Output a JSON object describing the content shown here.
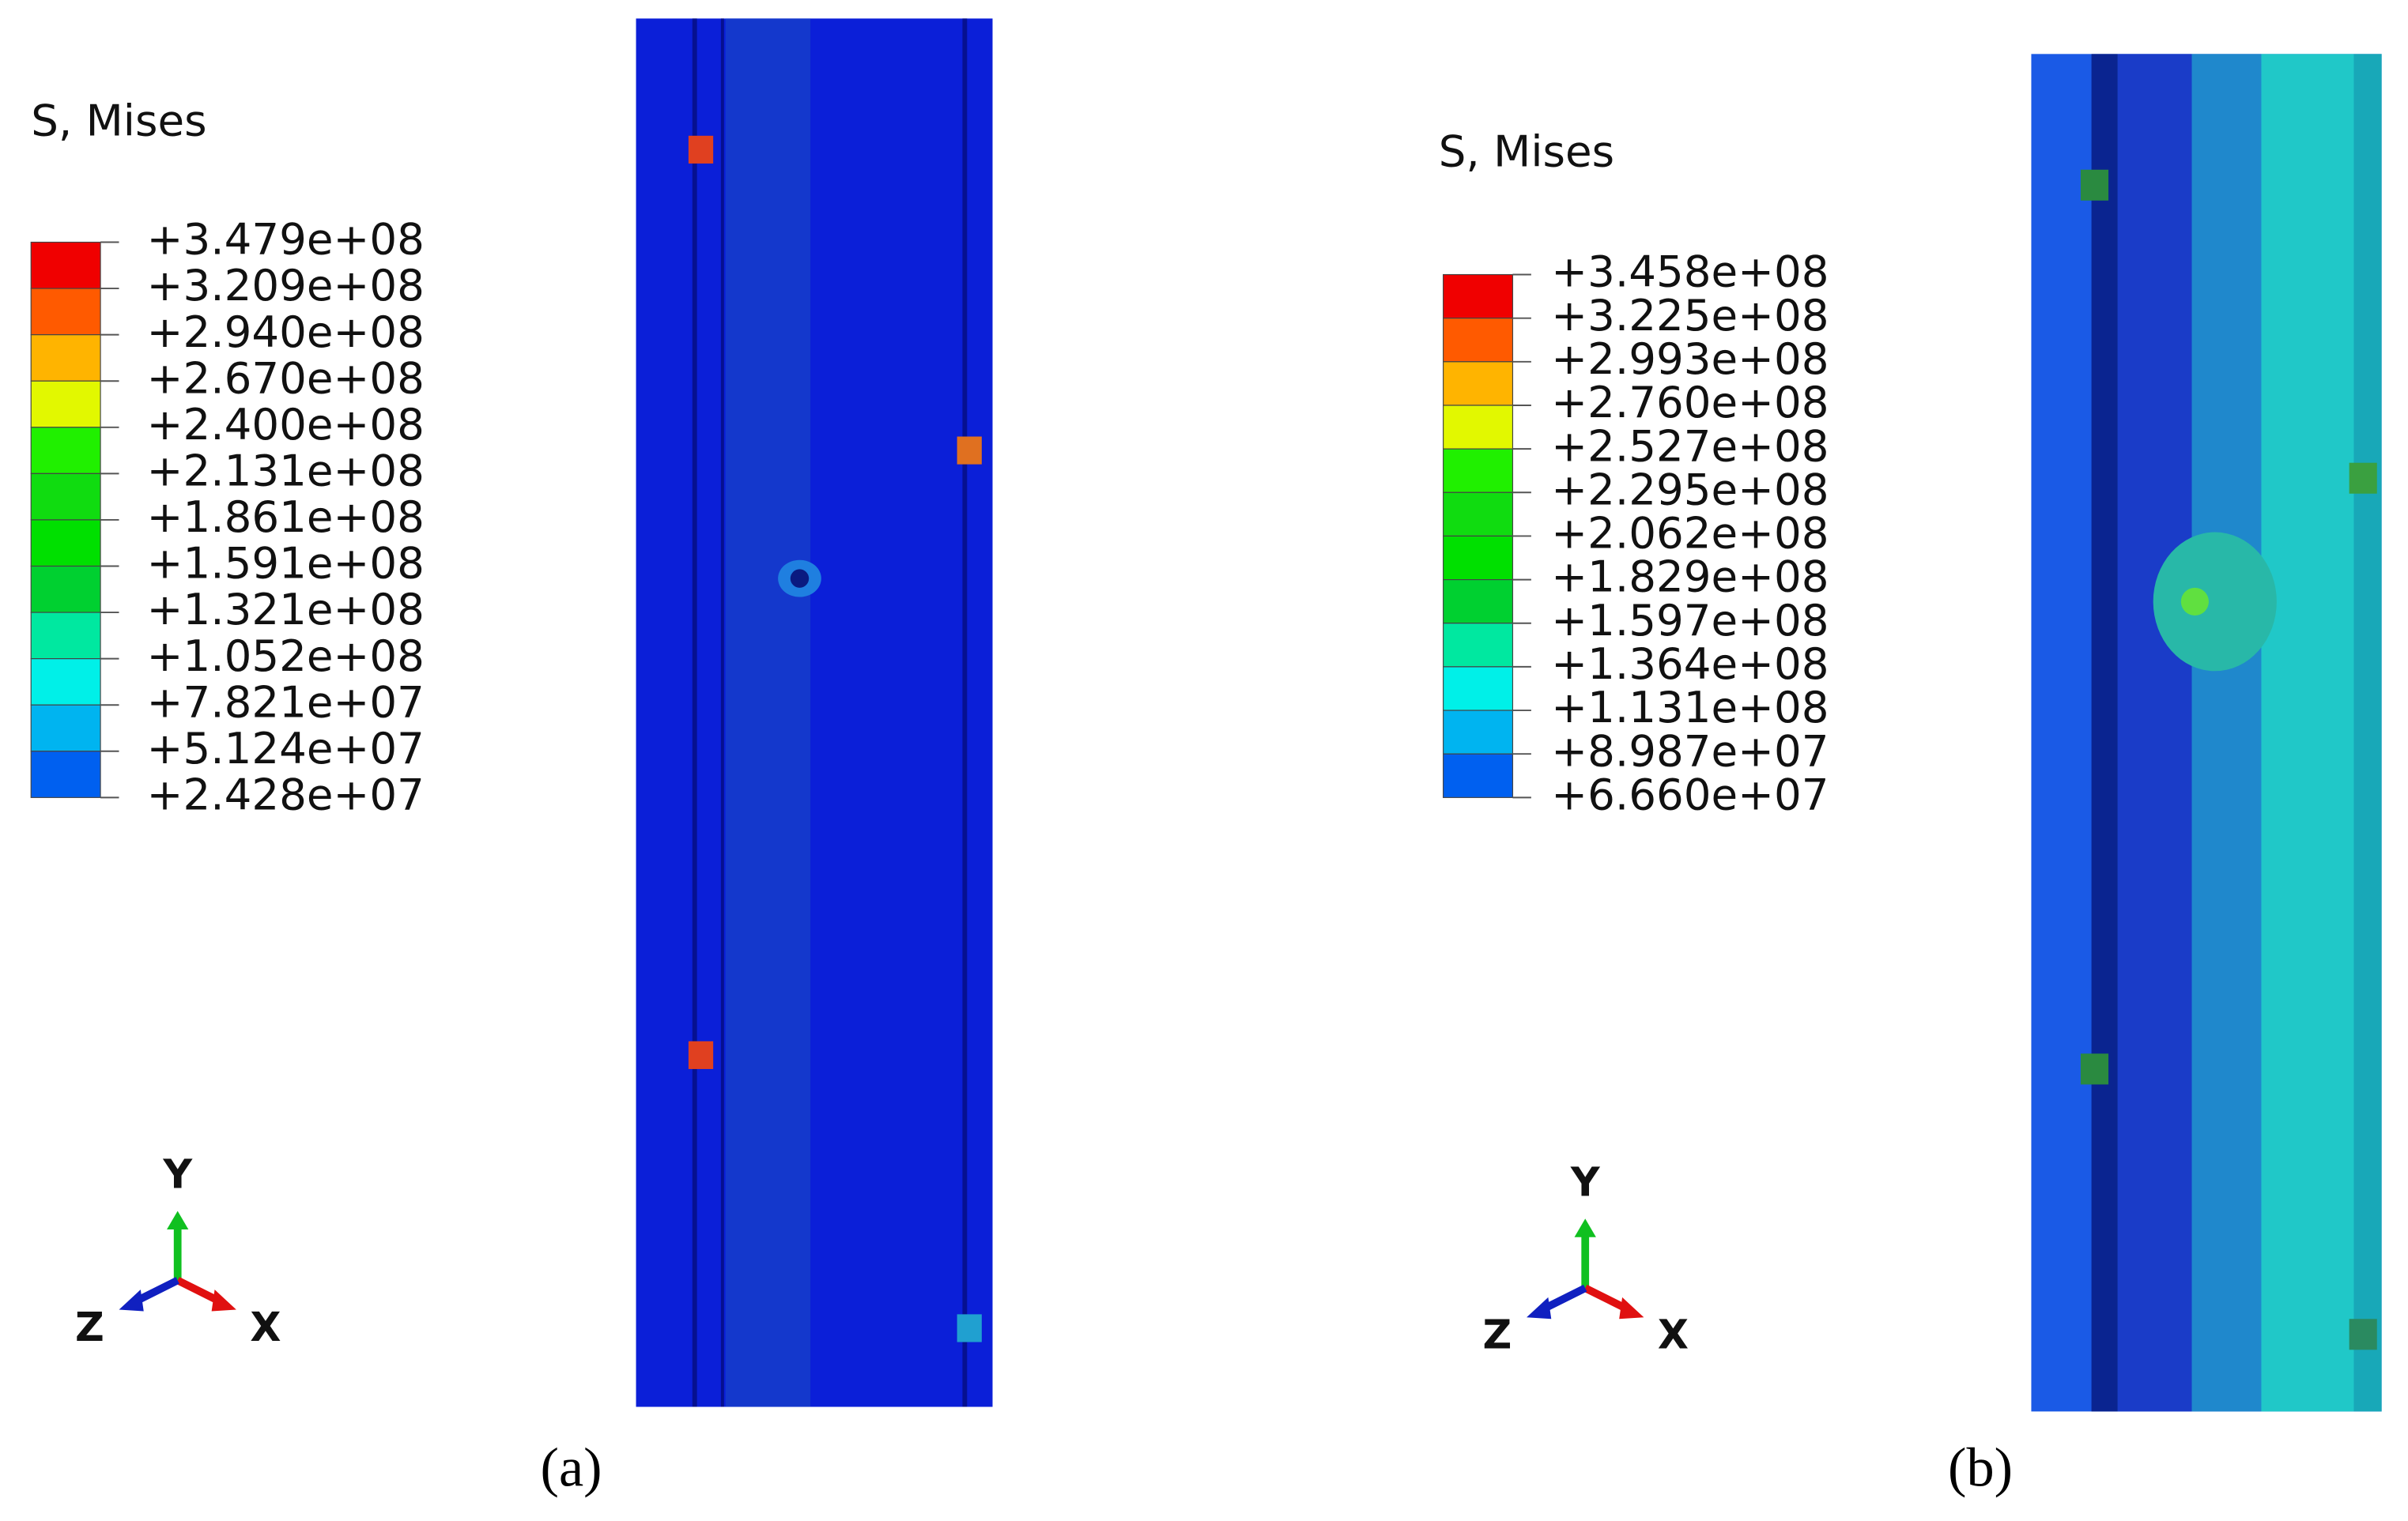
{
  "panels": [
    {
      "legend": {
        "title": "S, Mises",
        "labels": [
          "+3.479e+08",
          "+3.209e+08",
          "+2.940e+08",
          "+2.670e+08",
          "+2.400e+08",
          "+2.131e+08",
          "+1.861e+08",
          "+1.591e+08",
          "+1.321e+08",
          "+1.052e+08",
          "+7.821e+07",
          "+5.124e+07",
          "+2.428e+07"
        ]
      },
      "axes": {
        "y": "Y",
        "z": "Z",
        "x": "X"
      },
      "caption": "(a)"
    },
    {
      "legend": {
        "title": "S, Mises",
        "labels": [
          "+3.458e+08",
          "+3.225e+08",
          "+2.993e+08",
          "+2.760e+08",
          "+2.527e+08",
          "+2.295e+08",
          "+2.062e+08",
          "+1.829e+08",
          "+1.597e+08",
          "+1.364e+08",
          "+1.131e+08",
          "+8.987e+07",
          "+6.660e+07"
        ]
      },
      "axes": {
        "y": "Y",
        "z": "Z",
        "x": "X"
      },
      "caption": "(b)"
    }
  ]
}
